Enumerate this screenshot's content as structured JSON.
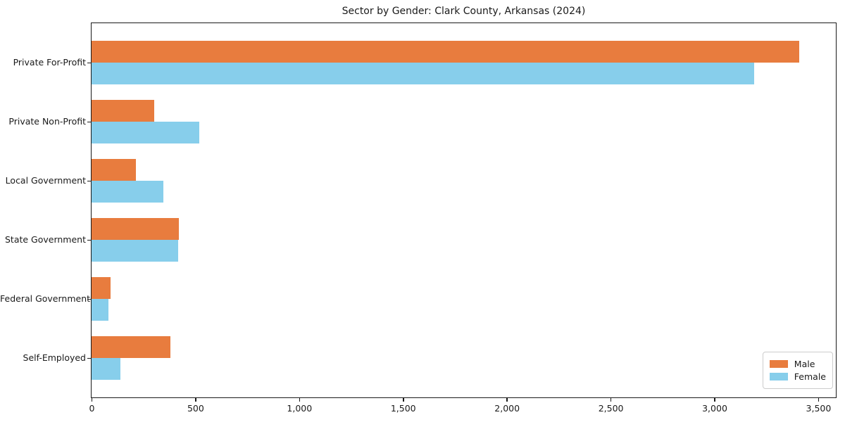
{
  "chart_data": {
    "type": "bar",
    "orientation": "horizontal",
    "title": "Sector by Gender: Clark County, Arkansas (2024)",
    "categories": [
      "Private For-Profit",
      "Private Non-Profit",
      "Local Government",
      "State Government",
      "Federal Government",
      "Self-Employed"
    ],
    "series": [
      {
        "name": "Male",
        "color": "#e87c3e",
        "values": [
          3410,
          300,
          215,
          420,
          90,
          380
        ]
      },
      {
        "name": "Female",
        "color": "#87ceeb",
        "values": [
          3190,
          520,
          345,
          418,
          80,
          140
        ]
      }
    ],
    "xlabel": "",
    "ylabel": "",
    "xlim": [
      0,
      3585
    ],
    "x_ticks": [
      0,
      500,
      1000,
      1500,
      2000,
      2500,
      3000,
      3500
    ],
    "x_tick_labels": [
      "0",
      "500",
      "1,000",
      "1,500",
      "2,000",
      "2,500",
      "3,000",
      "3,500"
    ],
    "grid": false,
    "legend": {
      "position": "lower right",
      "entries": [
        "Male",
        "Female"
      ]
    },
    "colors": {
      "frame": "#1a1a1a",
      "background": "#ffffff",
      "male": "#e87c3e",
      "female": "#87ceeb"
    }
  }
}
